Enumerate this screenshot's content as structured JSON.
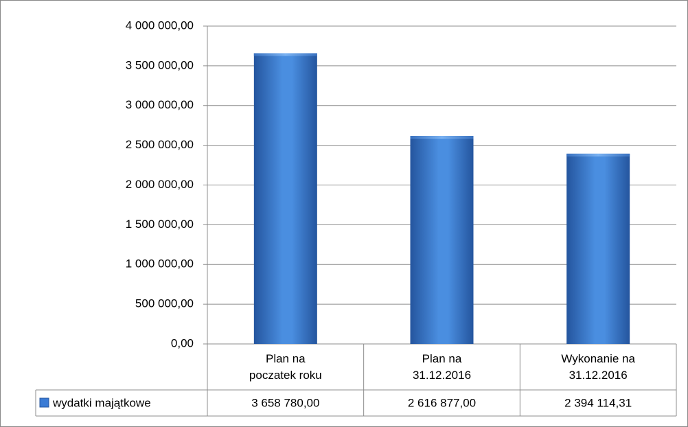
{
  "chart_data": {
    "type": "bar",
    "categories": [
      "Plan na\npoczatek roku",
      "Plan na\n31.12.2016",
      "Wykonanie na\n31.12.2016"
    ],
    "series": [
      {
        "name": "wydatki majątkowe",
        "color": "#3a7bd5",
        "values": [
          3658780,
          2616877,
          2394114.31
        ],
        "value_labels": [
          "3 658 780,00",
          "2 616 877,00",
          "2 394 114,31"
        ]
      }
    ],
    "ylim": [
      0,
      4000000
    ],
    "yticks": [
      {
        "value": 0,
        "label": "0,00"
      },
      {
        "value": 500000,
        "label": "500 000,00"
      },
      {
        "value": 1000000,
        "label": "1 000 000,00"
      },
      {
        "value": 1500000,
        "label": "1 500 000,00"
      },
      {
        "value": 2000000,
        "label": "2 000 000,00"
      },
      {
        "value": 2500000,
        "label": "2 500 000,00"
      },
      {
        "value": 3000000,
        "label": "3 000 000,00"
      },
      {
        "value": 3500000,
        "label": "3 500 000,00"
      },
      {
        "value": 4000000,
        "label": "4 000 000,00"
      }
    ],
    "grid": true
  }
}
